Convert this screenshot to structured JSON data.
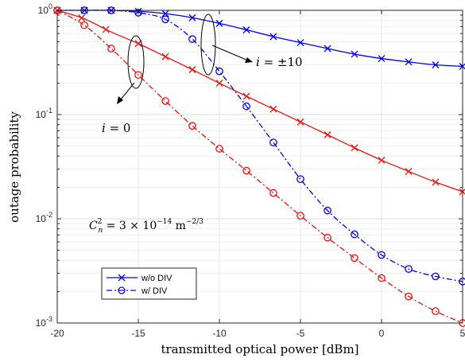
{
  "chart_data": {
    "type": "line",
    "xlabel": "transmitted optical power [dBm]",
    "ylabel": "outage probability",
    "xlim": [
      -20,
      5
    ],
    "ylim": [
      0.001,
      1
    ],
    "yscale": "log",
    "grid": true,
    "x_ticks": [
      -20,
      -15,
      -10,
      -5,
      0,
      5
    ],
    "x_tick_labels": [
      "-20",
      "-15",
      "-10",
      "-5",
      "0",
      "5"
    ],
    "y_ticks": [
      0.001,
      0.01,
      0.1,
      1
    ],
    "y_tick_labels": [
      {
        "base": "10",
        "exp": "-3"
      },
      {
        "base": "10",
        "exp": "-2"
      },
      {
        "base": "10",
        "exp": "-1"
      },
      {
        "base": "10",
        "exp": "0"
      }
    ],
    "x": [
      -20,
      -18.33,
      -16.67,
      -15,
      -13.33,
      -11.67,
      -10,
      -8.33,
      -6.67,
      -5,
      -3.33,
      -1.67,
      0,
      1.67,
      3.33,
      5
    ],
    "series": [
      {
        "group": "i = ±10",
        "style": "w/o DIV",
        "color": "#0000ee",
        "marker": "x",
        "dash": "solid",
        "values": [
          1.0,
          1.0,
          1.0,
          0.98,
          0.93,
          0.85,
          0.75,
          0.65,
          0.56,
          0.49,
          0.43,
          0.38,
          0.345,
          0.32,
          0.3,
          0.29
        ],
        "marker_x": [
          -20,
          -18.33,
          -16.67,
          -15,
          -13.33,
          -11.67,
          -10,
          -8.33,
          -6.67,
          -5,
          -3.33,
          -1.67,
          0,
          1.67,
          3.33,
          5
        ]
      },
      {
        "group": "i = ±10",
        "style": "w/ DIV",
        "color": "#0000ee",
        "marker": "o",
        "dash": "dashdot",
        "values": [
          1.0,
          1.0,
          1.0,
          0.95,
          0.82,
          0.53,
          0.26,
          0.12,
          0.054,
          0.024,
          0.012,
          0.0071,
          0.0045,
          0.0033,
          0.0028,
          0.0025
        ],
        "marker_x": [
          -20,
          -18.33,
          -16.67,
          -15,
          -13.33,
          -11.67,
          -10,
          -8.33,
          -6.67,
          -5,
          -3.33,
          -1.67,
          0,
          1.67,
          3.33,
          5
        ]
      },
      {
        "group": "i = 0",
        "style": "w/o DIV",
        "color": "#ee1111",
        "marker": "x",
        "dash": "solid",
        "values": [
          1.0,
          0.83,
          0.62,
          0.48,
          0.36,
          0.27,
          0.2,
          0.15,
          0.113,
          0.085,
          0.064,
          0.048,
          0.0365,
          0.0285,
          0.0225,
          0.0182
        ],
        "marker_x": [
          -20,
          -18.5,
          -17,
          -15,
          -13.33,
          -11.67,
          -10,
          -8.33,
          -6.67,
          -5,
          -3.33,
          -1.67,
          0,
          1.67,
          3.33,
          5
        ]
      },
      {
        "group": "i = 0",
        "style": "w/ DIV",
        "color": "#ee1111",
        "marker": "o",
        "dash": "dashdot",
        "values": [
          1.0,
          0.72,
          0.43,
          0.24,
          0.135,
          0.078,
          0.047,
          0.029,
          0.0177,
          0.0107,
          0.0066,
          0.0042,
          0.0027,
          0.0018,
          0.0013,
          0.001
        ],
        "marker_x": [
          -20,
          -18.33,
          -16.67,
          -15,
          -13.33,
          -11.67,
          -10,
          -8.33,
          -6.67,
          -5,
          -3.33,
          -1.67,
          0,
          1.67,
          3.33,
          5
        ]
      }
    ],
    "legend": {
      "placement": "lower-left",
      "entries": [
        {
          "label": "w/o DIV",
          "marker": "x",
          "dash": "solid",
          "color": "#0000ee"
        },
        {
          "label": "w/ DIV",
          "marker": "o",
          "dash": "dashdot",
          "color": "#0000ee"
        }
      ]
    },
    "annotations": [
      {
        "id": "i10",
        "text": "i = ±10"
      },
      {
        "id": "i0",
        "text": "i = 0"
      }
    ],
    "formula": {
      "base": "C",
      "sub": "n",
      "sup": "2",
      "middle": " = 3 × 10",
      "exp": "−14",
      "unit": " m",
      "unit_exp": "−2/3"
    }
  }
}
